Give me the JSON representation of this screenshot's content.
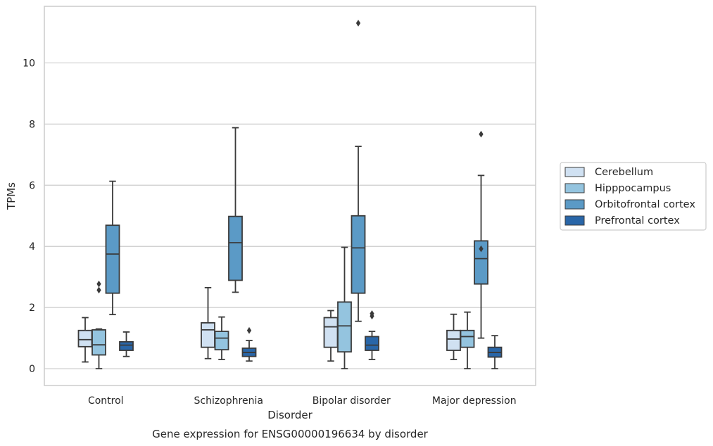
{
  "chart_data": {
    "type": "box",
    "title": "",
    "caption": "Gene expression for ENSG00000196634 by disorder",
    "xlabel": "Disorder",
    "ylabel": "TPMs",
    "ylim": [
      -0.55,
      11.85
    ],
    "yticks": [
      0,
      2,
      4,
      6,
      8,
      10
    ],
    "grid": "horizontal",
    "legend_position": "right",
    "categories": [
      "Control",
      "Schizophrenia",
      "Bipolar disorder",
      "Major depression"
    ],
    "series": [
      {
        "name": "Cerebellum",
        "color": "#d0e1f2",
        "boxes": [
          {
            "whislo": 0.22,
            "q1": 0.72,
            "med": 0.95,
            "q3": 1.25,
            "whishi": 1.67,
            "fliers": []
          },
          {
            "whislo": 0.33,
            "q1": 0.7,
            "med": 1.27,
            "q3": 1.5,
            "whishi": 2.65,
            "fliers": []
          },
          {
            "whislo": 0.25,
            "q1": 0.7,
            "med": 1.37,
            "q3": 1.67,
            "whishi": 1.9,
            "fliers": []
          },
          {
            "whislo": 0.3,
            "q1": 0.6,
            "med": 0.97,
            "q3": 1.25,
            "whishi": 1.78,
            "fliers": []
          }
        ]
      },
      {
        "name": "Hipppocampus",
        "color": "#94c4df",
        "boxes": [
          {
            "whislo": 0.0,
            "q1": 0.45,
            "med": 0.78,
            "q3": 1.27,
            "whishi": 1.3,
            "fliers": [
              2.57,
              2.77
            ]
          },
          {
            "whislo": 0.3,
            "q1": 0.62,
            "med": 1.0,
            "q3": 1.22,
            "whishi": 1.69,
            "fliers": []
          },
          {
            "whislo": 0.0,
            "q1": 0.55,
            "med": 1.4,
            "q3": 2.18,
            "whishi": 3.97,
            "fliers": []
          },
          {
            "whislo": 0.0,
            "q1": 0.7,
            "med": 1.05,
            "q3": 1.25,
            "whishi": 1.85,
            "fliers": []
          }
        ]
      },
      {
        "name": "Orbitofrontal cortex",
        "color": "#5b9ac6",
        "boxes": [
          {
            "whislo": 1.77,
            "q1": 2.47,
            "med": 3.75,
            "q3": 4.69,
            "whishi": 6.13,
            "fliers": []
          },
          {
            "whislo": 2.5,
            "q1": 2.89,
            "med": 4.12,
            "q3": 4.98,
            "whishi": 7.88,
            "fliers": []
          },
          {
            "whislo": 1.55,
            "q1": 2.47,
            "med": 3.95,
            "q3": 5.0,
            "whishi": 7.27,
            "fliers": [
              11.3
            ]
          },
          {
            "whislo": 1.0,
            "q1": 2.77,
            "med": 3.6,
            "q3": 4.18,
            "whishi": 6.32,
            "fliers": [
              3.92,
              7.67
            ]
          }
        ]
      },
      {
        "name": "Prefrontal cortex",
        "color": "#2966a8",
        "boxes": [
          {
            "whislo": 0.4,
            "q1": 0.6,
            "med": 0.77,
            "q3": 0.88,
            "whishi": 1.2,
            "fliers": []
          },
          {
            "whislo": 0.25,
            "q1": 0.4,
            "med": 0.53,
            "q3": 0.67,
            "whishi": 0.92,
            "fliers": [
              1.25
            ]
          },
          {
            "whislo": 0.3,
            "q1": 0.6,
            "med": 0.77,
            "q3": 1.05,
            "whishi": 1.22,
            "fliers": [
              1.72,
              1.8
            ]
          },
          {
            "whislo": 0.0,
            "q1": 0.38,
            "med": 0.53,
            "q3": 0.7,
            "whishi": 1.08,
            "fliers": []
          }
        ]
      }
    ]
  }
}
